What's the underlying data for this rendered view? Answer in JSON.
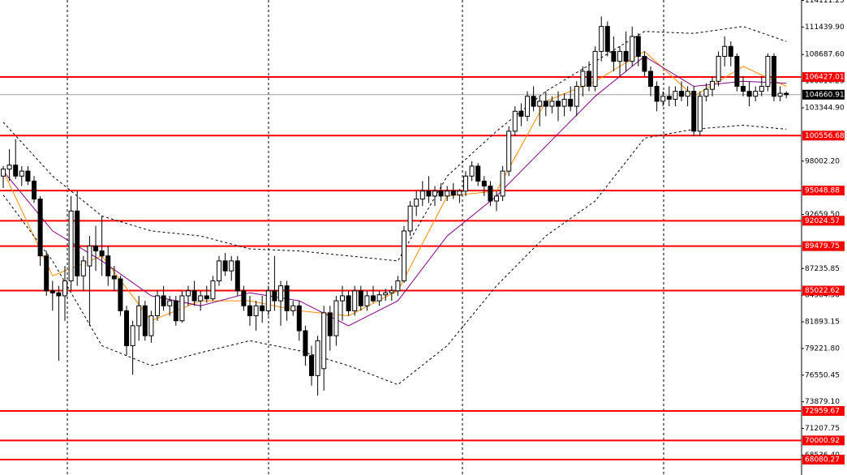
{
  "chart_data": {
    "type": "candlestick",
    "ylim": [
      66540,
      114150
    ],
    "yticks": [
      114111.25,
      {
        "value": 111439.9,
        "label": "111439.90"
      },
      {
        "value": 108687.6,
        "label": "108687.60"
      },
      106016.25,
      {
        "value": 103344.9,
        "label": "103344.90"
      },
      {
        "value": 98002.2,
        "label": "98002.20"
      },
      {
        "value": 92659.5,
        "label": "92659.50"
      },
      87235.85,
      {
        "value": 84564.5,
        "label": "84564.50"
      },
      81893.15,
      {
        "value": 79221.8,
        "label": "79221.80"
      },
      76550.45,
      {
        "value": 73879.1,
        "label": "73879.10"
      },
      71207.75,
      {
        "value": 68536.4,
        "label": "68536.40"
      }
    ],
    "up_color": "#ffffff",
    "down_color": "#000000",
    "candles": [
      [
        96500,
        97500,
        95300,
        97200
      ],
      [
        97200,
        99200,
        96000,
        97600
      ],
      [
        97600,
        100200,
        96200,
        96500
      ],
      [
        96500,
        97500,
        95500,
        97000
      ],
      [
        97000,
        97500,
        95600,
        96000
      ],
      [
        96000,
        96500,
        93800,
        94200
      ],
      [
        94200,
        94500,
        87500,
        88500
      ],
      [
        88500,
        89000,
        84500,
        85000
      ],
      [
        85000,
        86000,
        83000,
        84800
      ],
      [
        84800,
        85500,
        78000,
        84500
      ],
      [
        84500,
        87500,
        82000,
        86000
      ],
      [
        86000,
        94500,
        85000,
        93000
      ],
      [
        93000,
        95000,
        85500,
        86500
      ],
      [
        86500,
        88500,
        85000,
        88000
      ],
      [
        87500,
        90500,
        81500,
        89500
      ],
      [
        89500,
        91500,
        87000,
        89000
      ],
      [
        89000,
        92500,
        86500,
        88500
      ],
      [
        88500,
        89500,
        85500,
        86500
      ],
      [
        86500,
        87500,
        85000,
        86200
      ],
      [
        86200,
        86500,
        82500,
        83000
      ],
      [
        83000,
        83500,
        78500,
        79500
      ],
      [
        79500,
        82000,
        76600,
        81500
      ],
      [
        81500,
        84500,
        80000,
        83500
      ],
      [
        83500,
        84000,
        80000,
        80500
      ],
      [
        80500,
        83000,
        79800,
        82500
      ],
      [
        82500,
        85000,
        82000,
        84500
      ],
      [
        84500,
        85500,
        83000,
        83500
      ],
      [
        83500,
        84500,
        82500,
        84000
      ],
      [
        84000,
        84500,
        81500,
        82000
      ],
      [
        82000,
        85000,
        81800,
        84500
      ],
      [
        84500,
        85500,
        83500,
        85000
      ],
      [
        85000,
        86000,
        83500,
        84000
      ],
      [
        84000,
        85000,
        83000,
        84500
      ],
      [
        84500,
        85500,
        83800,
        84200
      ],
      [
        84200,
        86500,
        84000,
        86000
      ],
      [
        86000,
        88500,
        85500,
        88000
      ],
      [
        88000,
        88800,
        86500,
        87000
      ],
      [
        87000,
        88500,
        86000,
        88000
      ],
      [
        88000,
        88500,
        84500,
        85000
      ],
      [
        85000,
        85500,
        83000,
        83500
      ],
      [
        83500,
        84500,
        81500,
        82500
      ],
      [
        82500,
        84000,
        81000,
        83500
      ],
      [
        83500,
        84500,
        81800,
        83000
      ],
      [
        83000,
        85500,
        82500,
        85000
      ],
      [
        85000,
        88500,
        83000,
        84000
      ],
      [
        84000,
        86000,
        81500,
        85500
      ],
      [
        85500,
        86000,
        82000,
        83000
      ],
      [
        83000,
        84000,
        82500,
        83500
      ],
      [
        83500,
        84000,
        80000,
        81000
      ],
      [
        81000,
        81500,
        77500,
        78500
      ],
      [
        78500,
        79500,
        75500,
        76500
      ],
      [
        76500,
        80500,
        74500,
        80000
      ],
      [
        77200,
        83500,
        75000,
        82800
      ],
      [
        82800,
        83500,
        79000,
        80500
      ],
      [
        80500,
        84500,
        79500,
        84000
      ],
      [
        84000,
        85500,
        82000,
        84500
      ],
      [
        84500,
        85000,
        82500,
        83000
      ],
      [
        83000,
        85500,
        82500,
        85000
      ],
      [
        85000,
        85500,
        83000,
        83500
      ],
      [
        83500,
        85000,
        83000,
        84500
      ],
      [
        84500,
        85500,
        83800,
        84000
      ],
      [
        84000,
        85000,
        83500,
        84600
      ],
      [
        84600,
        85200,
        84000,
        84800
      ],
      [
        84800,
        85500,
        84000,
        85000
      ],
      [
        85000,
        86500,
        84500,
        86000
      ],
      [
        86000,
        91500,
        85800,
        91000
      ],
      [
        91000,
        94000,
        90500,
        93500
      ],
      [
        93500,
        95000,
        92500,
        94200
      ],
      [
        94200,
        96000,
        93500,
        95000
      ],
      [
        95000,
        96500,
        93800,
        94500
      ],
      [
        94500,
        95500,
        93500,
        95000
      ],
      [
        95000,
        95800,
        94000,
        94500
      ],
      [
        94500,
        95500,
        94000,
        95000
      ],
      [
        95000,
        95800,
        94200,
        94600
      ],
      [
        94600,
        95200,
        93800,
        95000
      ],
      [
        95000,
        97000,
        94500,
        96500
      ],
      [
        96500,
        98000,
        96000,
        97500
      ],
      [
        97500,
        97800,
        95500,
        96000
      ],
      [
        96000,
        96500,
        94500,
        95500
      ],
      [
        95500,
        96000,
        93500,
        94000
      ],
      [
        94000,
        95000,
        93000,
        94500
      ],
      [
        94500,
        97500,
        94000,
        97000
      ],
      [
        97000,
        101500,
        96500,
        101000
      ],
      [
        101000,
        103500,
        100500,
        103000
      ],
      [
        103000,
        103800,
        101500,
        102500
      ],
      [
        102500,
        105000,
        102000,
        104500
      ],
      [
        104500,
        105500,
        103000,
        103500
      ],
      [
        103500,
        104500,
        101500,
        104000
      ],
      [
        104000,
        105000,
        102500,
        103500
      ],
      [
        103500,
        104500,
        102800,
        104000
      ],
      [
        104000,
        105000,
        102000,
        103500
      ],
      [
        103500,
        104800,
        102500,
        104200
      ],
      [
        104200,
        105500,
        103000,
        103500
      ],
      [
        103500,
        106000,
        102500,
        105500
      ],
      [
        105500,
        107500,
        104500,
        107000
      ],
      [
        107000,
        108000,
        105000,
        105500
      ],
      [
        105500,
        109500,
        105000,
        109000
      ],
      [
        109000,
        112500,
        108000,
        111500
      ],
      [
        111500,
        112000,
        108500,
        109000
      ],
      [
        109000,
        110500,
        107000,
        108000
      ],
      [
        108000,
        109500,
        106500,
        109000
      ],
      [
        109000,
        111000,
        107000,
        108000
      ],
      [
        108000,
        111500,
        107500,
        110500
      ],
      [
        110500,
        110800,
        107500,
        108500
      ],
      [
        108500,
        109000,
        106500,
        107000
      ],
      [
        107000,
        107500,
        104500,
        105500
      ],
      [
        105500,
        106000,
        103000,
        104000
      ],
      [
        104000,
        105000,
        103500,
        104500
      ],
      [
        104500,
        105500,
        103500,
        104200
      ],
      [
        104200,
        105500,
        103500,
        105000
      ],
      [
        105000,
        106000,
        104000,
        104500
      ],
      [
        104500,
        105500,
        103500,
        105000
      ],
      [
        105000,
        105500,
        100500,
        101000
      ],
      [
        101000,
        105000,
        100500,
        104500
      ],
      [
        104500,
        105800,
        104000,
        105200
      ],
      [
        105200,
        106500,
        104500,
        106000
      ],
      [
        106000,
        109000,
        105500,
        108500
      ],
      [
        108500,
        110500,
        107500,
        109500
      ],
      [
        109500,
        110000,
        107500,
        108500
      ],
      [
        108500,
        108800,
        105000,
        105500
      ],
      [
        105500,
        106500,
        104500,
        105000
      ],
      [
        105000,
        106000,
        103500,
        104500
      ],
      [
        104500,
        105500,
        104000,
        105000
      ],
      [
        105000,
        106500,
        104500,
        105500
      ],
      [
        105500,
        108800,
        105000,
        108500
      ],
      [
        108500,
        108800,
        104000,
        104500
      ],
      [
        104500,
        105500,
        104000,
        104800
      ],
      [
        104800,
        105000,
        104300,
        104660.91
      ]
    ],
    "lines": [
      {
        "color": "#ff8c00",
        "dash": false,
        "x": [
          0,
          8,
          16,
          24,
          32,
          40,
          48,
          56,
          64,
          72,
          80,
          88,
          96,
          104,
          112,
          120,
          127
        ],
        "values": [
          97000,
          86500,
          88500,
          82000,
          84000,
          84000,
          83000,
          82500,
          85000,
          94500,
          95000,
          104000,
          106000,
          109000,
          104500,
          107500,
          105500
        ]
      },
      {
        "color": "#800080",
        "dash": false,
        "x": [
          0,
          8,
          16,
          24,
          32,
          40,
          48,
          56,
          64,
          72,
          80,
          88,
          96,
          104,
          112,
          120,
          127
        ],
        "values": [
          97000,
          91000,
          88000,
          84500,
          83500,
          84800,
          84000,
          81500,
          84000,
          90500,
          94500,
          99500,
          104500,
          108500,
          105500,
          106000,
          105800
        ]
      },
      {
        "color": "#000000",
        "dash": true,
        "x": [
          0,
          8,
          16,
          24,
          32,
          40,
          48,
          56,
          64,
          72,
          80,
          88,
          96,
          104,
          112,
          120,
          127
        ],
        "values": [
          101900,
          96500,
          92500,
          91000,
          90500,
          89200,
          89000,
          88500,
          88000,
          96500,
          101000,
          105000,
          108000,
          111000,
          110800,
          111500,
          110000
        ]
      },
      {
        "color": "#000000",
        "dash": true,
        "x": [
          0,
          8,
          16,
          24,
          32,
          40,
          48,
          56,
          64,
          72,
          80,
          88,
          96,
          104,
          112,
          120,
          127
        ],
        "values": [
          94600,
          88000,
          79500,
          77500,
          78800,
          80000,
          79000,
          77500,
          75600,
          79500,
          85500,
          90500,
          94000,
          100300,
          101200,
          101600,
          101200
        ]
      }
    ],
    "levels": [
      106427.01,
      100556.68,
      95048.88,
      92024.57,
      89479.75,
      85022.62,
      72959.67,
      70000.92,
      68080.27
    ],
    "level_color": "#ff0000",
    "current_price": 104660.91
  }
}
